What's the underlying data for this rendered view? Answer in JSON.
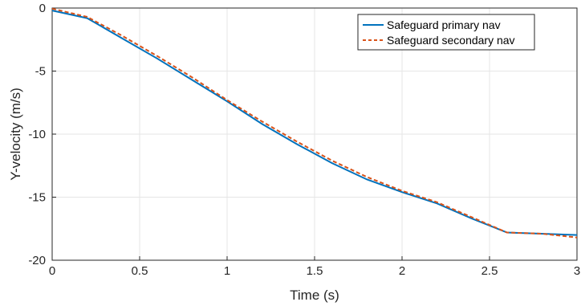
{
  "chart_data": {
    "type": "line",
    "xlabel": "Time (s)",
    "ylabel": "Y-velocity (m/s)",
    "xlim": [
      0,
      3
    ],
    "ylim": [
      -20,
      0
    ],
    "x_ticks": [
      "0",
      "0.5",
      "1",
      "1.5",
      "2",
      "2.5",
      "3"
    ],
    "y_ticks": [
      "0",
      "-5",
      "-10",
      "-15",
      "-20"
    ],
    "grid": true,
    "legend_position": "top-right",
    "series": [
      {
        "name": "Safeguard primary nav",
        "color": "#0072BD",
        "style": "solid",
        "points": [
          [
            0,
            -0.2
          ],
          [
            0.2,
            -0.8
          ],
          [
            0.4,
            -2.4
          ],
          [
            0.6,
            -4.0
          ],
          [
            0.8,
            -5.7
          ],
          [
            1.0,
            -7.4
          ],
          [
            1.2,
            -9.2
          ],
          [
            1.4,
            -10.8
          ],
          [
            1.6,
            -12.3
          ],
          [
            1.8,
            -13.6
          ],
          [
            2.0,
            -14.6
          ],
          [
            2.2,
            -15.5
          ],
          [
            2.4,
            -16.7
          ],
          [
            2.6,
            -17.8
          ],
          [
            2.8,
            -17.9
          ],
          [
            3.0,
            -18.0
          ]
        ]
      },
      {
        "name": "Safeguard secondary nav",
        "color": "#D95319",
        "style": "dashed",
        "points": [
          [
            0,
            -0.05
          ],
          [
            0.2,
            -0.7
          ],
          [
            0.4,
            -2.2
          ],
          [
            0.6,
            -3.8
          ],
          [
            0.8,
            -5.5
          ],
          [
            1.0,
            -7.3
          ],
          [
            1.2,
            -9.0
          ],
          [
            1.4,
            -10.6
          ],
          [
            1.6,
            -12.1
          ],
          [
            1.8,
            -13.4
          ],
          [
            2.0,
            -14.5
          ],
          [
            2.2,
            -15.4
          ],
          [
            2.4,
            -16.6
          ],
          [
            2.6,
            -17.8
          ],
          [
            2.8,
            -17.9
          ],
          [
            3.0,
            -18.2
          ]
        ]
      }
    ]
  }
}
